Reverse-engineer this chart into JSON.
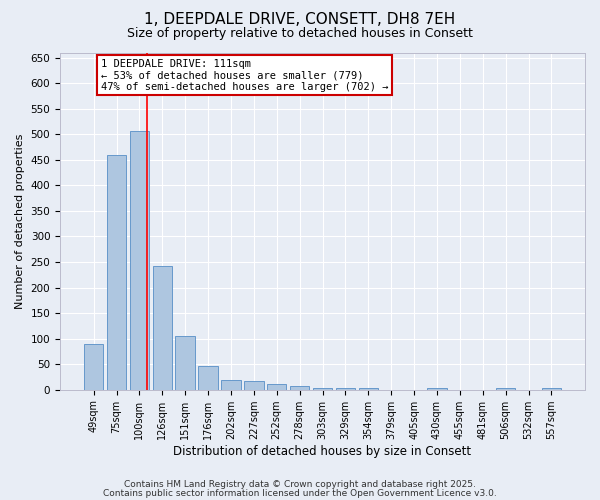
{
  "title": "1, DEEPDALE DRIVE, CONSETT, DH8 7EH",
  "subtitle": "Size of property relative to detached houses in Consett",
  "xlabel": "Distribution of detached houses by size in Consett",
  "ylabel": "Number of detached properties",
  "categories": [
    "49sqm",
    "75sqm",
    "100sqm",
    "126sqm",
    "151sqm",
    "176sqm",
    "202sqm",
    "227sqm",
    "252sqm",
    "278sqm",
    "303sqm",
    "329sqm",
    "354sqm",
    "379sqm",
    "405sqm",
    "430sqm",
    "455sqm",
    "481sqm",
    "506sqm",
    "532sqm",
    "557sqm"
  ],
  "values": [
    90,
    460,
    507,
    243,
    105,
    47,
    19,
    18,
    12,
    8,
    4,
    4,
    4,
    0,
    0,
    4,
    0,
    0,
    4,
    0,
    4
  ],
  "bar_color": "#aec6e0",
  "bar_edge_color": "#6699cc",
  "bg_color": "#e8edf5",
  "grid_color": "#ffffff",
  "red_line_x": 2.35,
  "annotation_text": "1 DEEPDALE DRIVE: 111sqm\n← 53% of detached houses are smaller (779)\n47% of semi-detached houses are larger (702) →",
  "annotation_box_color": "#cc0000",
  "ylim": [
    0,
    660
  ],
  "yticks": [
    0,
    50,
    100,
    150,
    200,
    250,
    300,
    350,
    400,
    450,
    500,
    550,
    600,
    650
  ],
  "footer1": "Contains HM Land Registry data © Crown copyright and database right 2025.",
  "footer2": "Contains public sector information licensed under the Open Government Licence v3.0."
}
